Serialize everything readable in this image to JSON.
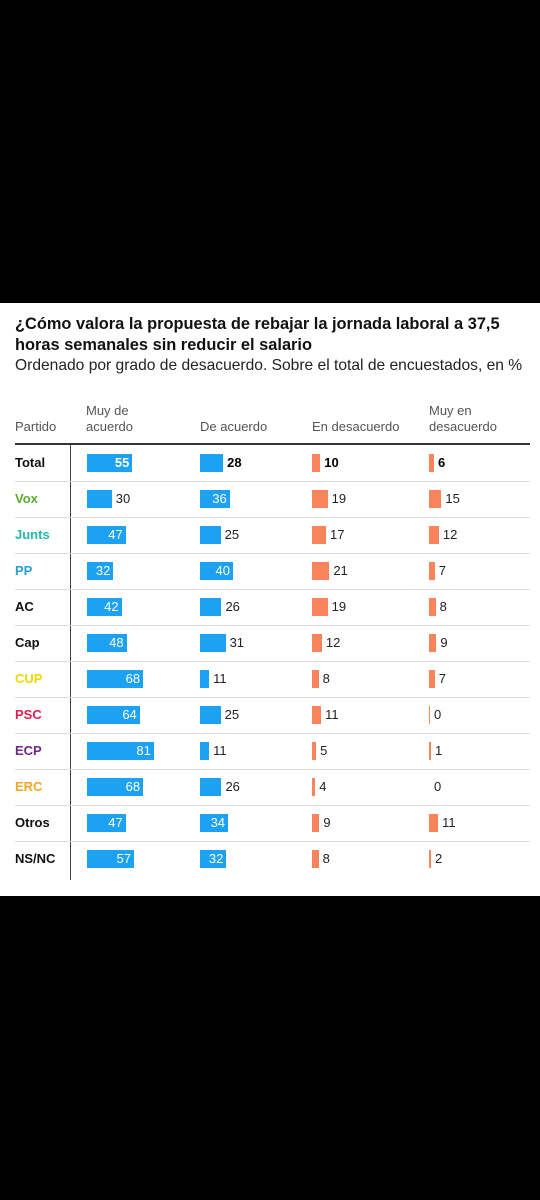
{
  "title": "¿Cómo valora la propuesta de rebajar la jornada laboral a 37,5 horas semanales sin reducir el salario",
  "subtitle": "Ordenado por grado de desacuerdo. Sobre el total de encuestados, en %",
  "colors": {
    "blue": "#1da1f2",
    "orange": "#f7845b"
  },
  "chart_data": {
    "type": "bar",
    "title": "¿Cómo valora la propuesta de rebajar la jornada laboral a 37,5 horas semanales sin reducir el salario",
    "columns": [
      "Partido",
      "Muy de acuerdo",
      "De acuerdo",
      "En desacuerdo",
      "Muy en desacuerdo"
    ],
    "categories": [
      "Total",
      "Vox",
      "Junts",
      "PP",
      "AC",
      "Cap",
      "CUP",
      "PSC",
      "ECP",
      "ERC",
      "Otros",
      "NS/NC"
    ],
    "category_colors": [
      "#111111",
      "#5aab2e",
      "#1fb8b0",
      "#2a9fd6",
      "#111111",
      "#111111",
      "#f0d800",
      "#e3204a",
      "#6b2a86",
      "#f5a623",
      "#111111",
      "#111111"
    ],
    "series": [
      {
        "name": "Muy de acuerdo",
        "values": [
          55,
          30,
          47,
          32,
          42,
          48,
          68,
          64,
          81,
          68,
          47,
          57
        ]
      },
      {
        "name": "De acuerdo",
        "values": [
          28,
          36,
          25,
          40,
          26,
          31,
          11,
          25,
          11,
          26,
          34,
          32
        ]
      },
      {
        "name": "En desacuerdo",
        "values": [
          10,
          19,
          17,
          21,
          19,
          12,
          8,
          11,
          5,
          4,
          9,
          8
        ]
      },
      {
        "name": "Muy en desacuerdo",
        "values": [
          6,
          15,
          12,
          7,
          8,
          9,
          7,
          0,
          1,
          0,
          11,
          2
        ]
      }
    ],
    "series_colors": [
      "#1da1f2",
      "#1da1f2",
      "#f7845b",
      "#f7845b"
    ],
    "header_labels": [
      "Partido",
      "Muy de\nacuerdo",
      "De acuerdo",
      "En desacuerdo",
      "Muy en\ndesacuerdo"
    ]
  }
}
